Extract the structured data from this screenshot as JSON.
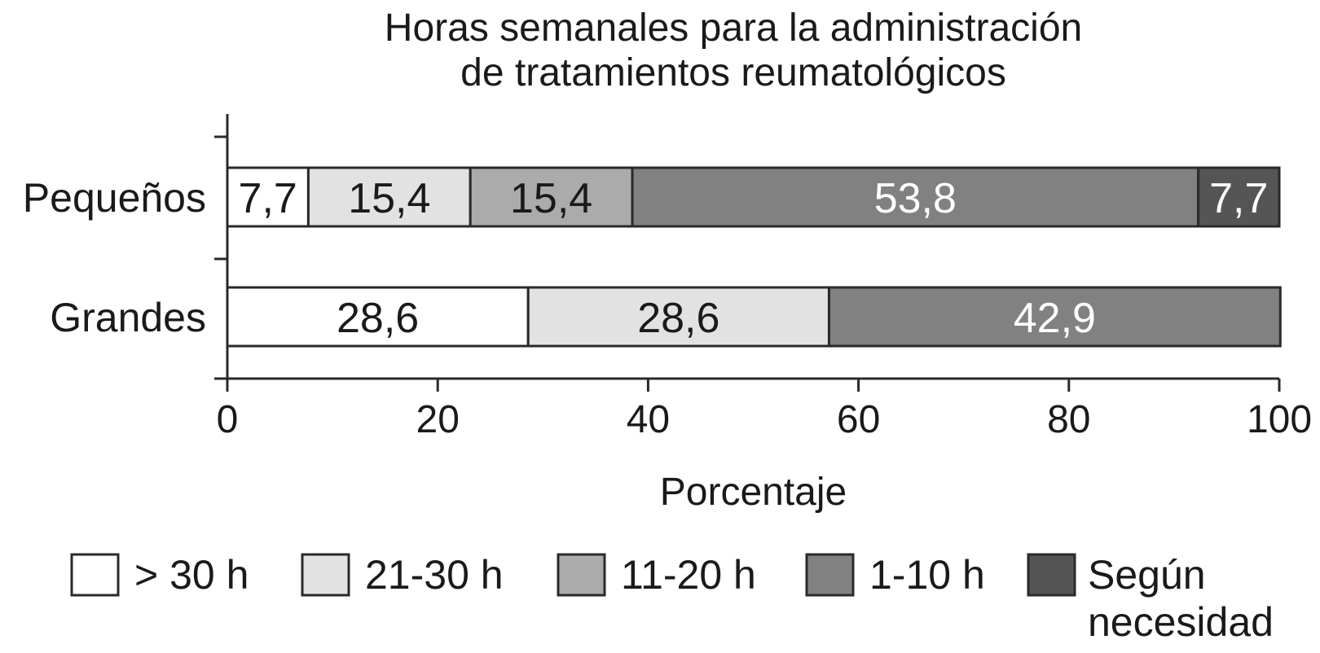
{
  "chart_data": {
    "type": "bar",
    "orientation": "horizontal",
    "stacked": true,
    "title": [
      "Horas semanales para la administración",
      "de tratamientos reumatológicos"
    ],
    "xlabel": "Porcentaje",
    "ylabel": "",
    "xlim": [
      0,
      100
    ],
    "xticks": [
      0,
      20,
      40,
      60,
      80,
      100
    ],
    "grid": false,
    "legend_position": "bottom",
    "categories": [
      "Pequeños",
      "Grandes"
    ],
    "series": [
      {
        "name": "> 30 h",
        "color": "#ffffff",
        "text_color": "#1a1a1a",
        "values": [
          7.7,
          28.6
        ],
        "labels": [
          "7,7",
          "28,6"
        ]
      },
      {
        "name": "21-30 h",
        "color": "#e2e2e2",
        "text_color": "#1a1a1a",
        "values": [
          15.4,
          28.6
        ],
        "labels": [
          "15,4",
          "28,6"
        ]
      },
      {
        "name": "11-20 h",
        "color": "#ababab",
        "text_color": "#1a1a1a",
        "values": [
          15.4,
          0
        ],
        "labels": [
          "15,4",
          ""
        ]
      },
      {
        "name": "1-10 h",
        "color": "#818181",
        "text_color": "#ffffff",
        "values": [
          53.8,
          42.9
        ],
        "labels": [
          "53,8",
          "42,9"
        ]
      },
      {
        "name": [
          "Según",
          "necesidad"
        ],
        "color": "#555555",
        "text_color": "#ffffff",
        "values": [
          7.7,
          0
        ],
        "labels": [
          "7,7",
          ""
        ]
      }
    ]
  }
}
